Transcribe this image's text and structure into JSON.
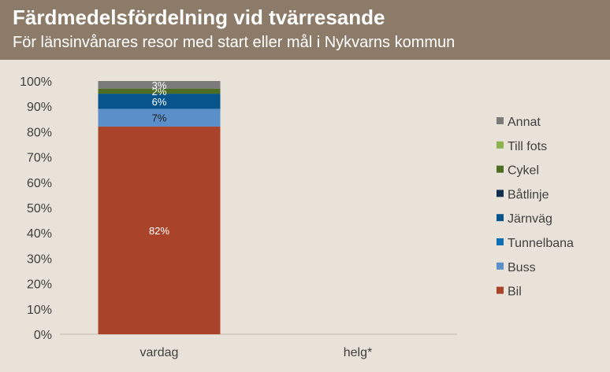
{
  "header": {
    "title": "Färdmedelsfördelning vid tvärresande",
    "subtitle": "För länsinvånares resor med start eller mål i Nykvarns kommun"
  },
  "chart_data": {
    "type": "bar",
    "stacked": true,
    "categories": [
      "vardag",
      "helg*"
    ],
    "y_ticks": [
      "0%",
      "10%",
      "20%",
      "30%",
      "40%",
      "50%",
      "60%",
      "70%",
      "80%",
      "90%",
      "100%"
    ],
    "ylim": [
      0,
      100
    ],
    "legend_position": "right",
    "series": [
      {
        "name": "Bil",
        "color": "#a9442a",
        "values": [
          82,
          null
        ],
        "labels": [
          "82%",
          ""
        ],
        "label_color": "#ffffff"
      },
      {
        "name": "Buss",
        "color": "#5b8fca",
        "values": [
          7,
          null
        ],
        "labels": [
          "7%",
          ""
        ],
        "label_color": "#1a1a1a"
      },
      {
        "name": "Tunnelbana",
        "color": "#0e6fb4",
        "values": [
          0,
          null
        ],
        "labels": [
          "",
          ""
        ],
        "label_color": "#ffffff"
      },
      {
        "name": "Järnväg",
        "color": "#07548c",
        "values": [
          6,
          null
        ],
        "labels": [
          "6%",
          ""
        ],
        "label_color": "#ffffff"
      },
      {
        "name": "Båtlinje",
        "color": "#10304f",
        "values": [
          0,
          null
        ],
        "labels": [
          "",
          ""
        ],
        "label_color": "#ffffff"
      },
      {
        "name": "Cykel",
        "color": "#4c6d22",
        "values": [
          2,
          null
        ],
        "labels": [
          "2%",
          ""
        ],
        "label_color": "#ffffff"
      },
      {
        "name": "Till fots",
        "color": "#8ab34e",
        "values": [
          0,
          null
        ],
        "labels": [
          "",
          ""
        ],
        "label_color": "#ffffff"
      },
      {
        "name": "Annat",
        "color": "#7b7b7b",
        "values": [
          3,
          null
        ],
        "labels": [
          "3%",
          ""
        ],
        "label_color": "#ffffff"
      }
    ]
  }
}
